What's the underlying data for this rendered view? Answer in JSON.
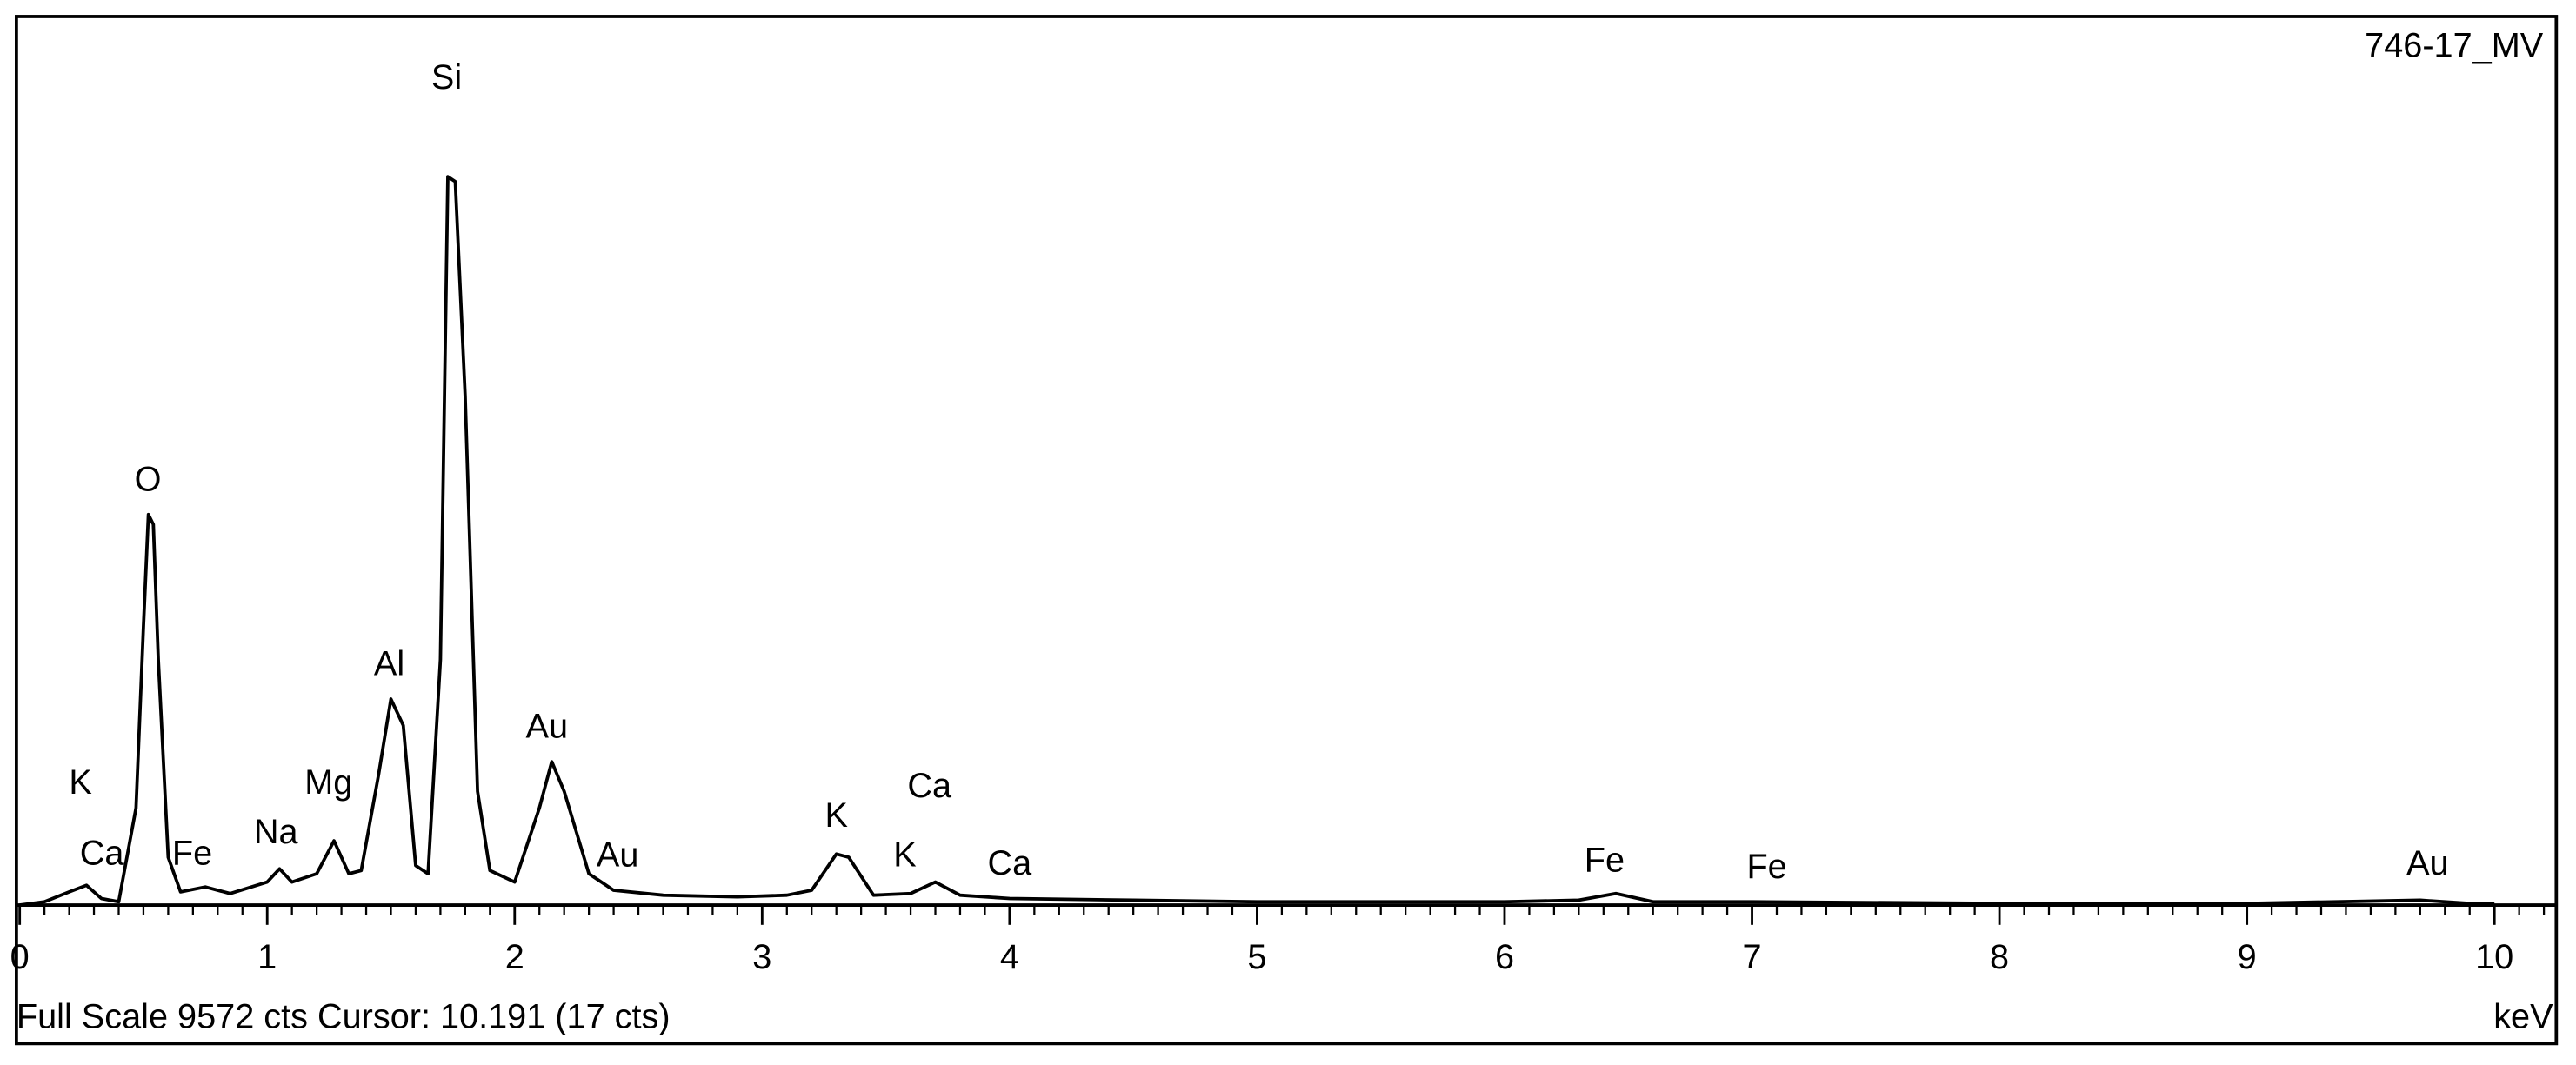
{
  "chart_data": {
    "type": "line",
    "title": "746-17_MV",
    "x_label": "keV",
    "footer": "Full Scale 9572 cts Cursor: 10.191  (17 cts)",
    "color": "#000000",
    "xlim": [
      0,
      10.25
    ],
    "ylim": [
      0,
      9572
    ],
    "xticks": [
      0,
      1,
      2,
      3,
      4,
      5,
      6,
      7,
      8,
      9,
      10
    ],
    "xminorticks": [
      0.1,
      0.2,
      0.3,
      0.4,
      0.5,
      0.6,
      0.7,
      0.8,
      0.9,
      1.1,
      1.2,
      1.3,
      1.4,
      1.5,
      1.6,
      1.7,
      1.8,
      1.9,
      2.1,
      2.2,
      2.3,
      2.4,
      2.5,
      2.6,
      2.7,
      2.8,
      2.9,
      3.1,
      3.2,
      3.3,
      3.4,
      3.5,
      3.6,
      3.7,
      3.8,
      3.9,
      4.1,
      4.2,
      4.3,
      4.4,
      4.5,
      4.6,
      4.7,
      4.8,
      4.9,
      5.1,
      5.2,
      5.3,
      5.4,
      5.5,
      5.6,
      5.7,
      5.8,
      5.9,
      6.1,
      6.2,
      6.3,
      6.4,
      6.5,
      6.6,
      6.7,
      6.8,
      6.9,
      7.1,
      7.2,
      7.3,
      7.4,
      7.5,
      7.6,
      7.7,
      7.8,
      7.9,
      8.1,
      8.2,
      8.3,
      8.4,
      8.5,
      8.6,
      8.7,
      8.8,
      8.9,
      9.1,
      9.2,
      9.3,
      9.4,
      9.5,
      9.6,
      9.7,
      9.8,
      9.9,
      10.1,
      10.2
    ],
    "x": [
      0,
      0.1,
      0.2,
      0.27,
      0.33,
      0.4,
      0.47,
      0.5,
      0.52,
      0.54,
      0.56,
      0.6,
      0.65,
      0.75,
      0.85,
      1.0,
      1.05,
      1.1,
      1.2,
      1.27,
      1.33,
      1.38,
      1.45,
      1.5,
      1.55,
      1.6,
      1.65,
      1.7,
      1.73,
      1.76,
      1.8,
      1.85,
      1.9,
      2.0,
      2.1,
      2.15,
      2.2,
      2.3,
      2.4,
      2.6,
      2.9,
      3.1,
      3.2,
      3.3,
      3.35,
      3.45,
      3.6,
      3.7,
      3.8,
      4.0,
      4.5,
      5.0,
      6.0,
      6.3,
      6.45,
      6.6,
      7.0,
      8.0,
      9.0,
      9.7,
      9.9,
      10.0
    ],
    "values": [
      0,
      36,
      143,
      214,
      71,
      36,
      1051,
      3012,
      4223,
      4116,
      2655,
      517,
      143,
      196,
      125,
      249,
      392,
      249,
      339,
      695,
      339,
      374,
      1408,
      2228,
      1942,
      428,
      339,
      2655,
      7876,
      7823,
      5506,
      1230,
      374,
      249,
      1051,
      1550,
      1230,
      339,
      160,
      107,
      89,
      107,
      160,
      552,
      517,
      107,
      125,
      249,
      107,
      71,
      53,
      36,
      36,
      53,
      125,
      36,
      36,
      18,
      18,
      53,
      18,
      18
    ],
    "annotations": [
      {
        "text": "Si",
        "x": 1.725,
        "y": 8928
      },
      {
        "text": "O",
        "x": 0.518,
        "y": 4580
      },
      {
        "text": "Al",
        "x": 1.493,
        "y": 2584
      },
      {
        "text": "Au",
        "x": 2.13,
        "y": 1907
      },
      {
        "text": "Mg",
        "x": 1.248,
        "y": 1301
      },
      {
        "text": "K",
        "x": 0.246,
        "y": 1301
      },
      {
        "text": "Ca",
        "x": 0.332,
        "y": 535
      },
      {
        "text": "Fe",
        "x": 0.697,
        "y": 535
      },
      {
        "text": "Na",
        "x": 1.035,
        "y": 766
      },
      {
        "text": "Au",
        "x": 2.416,
        "y": 517
      },
      {
        "text": "K",
        "x": 3.3,
        "y": 944
      },
      {
        "text": "Ca",
        "x": 3.676,
        "y": 1265
      },
      {
        "text": "K",
        "x": 3.577,
        "y": 517
      },
      {
        "text": "Ca",
        "x": 4.0,
        "y": 428
      },
      {
        "text": "Fe",
        "x": 6.404,
        "y": 463
      },
      {
        "text": "Fe",
        "x": 7.06,
        "y": 392
      },
      {
        "text": "Au",
        "x": 9.73,
        "y": 428
      }
    ]
  }
}
